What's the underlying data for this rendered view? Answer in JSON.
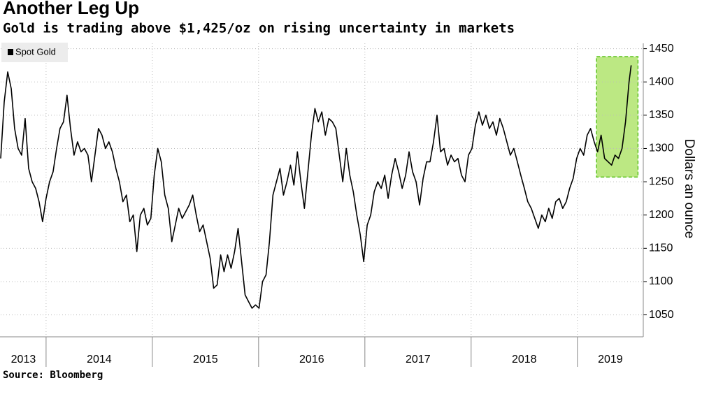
{
  "chart_data": {
    "type": "line",
    "title": "Another Leg Up",
    "subtitle": "Gold is trading above $1,425/oz on rising uncertainty in markets",
    "y_axis_label": "Dollars an ounce",
    "source": "Source: Bloomberg",
    "grid": true,
    "legend_position": "top-left",
    "xlim": [
      2013.573,
      2019.62
    ],
    "xticks": [
      {
        "value": 2013,
        "label": "2013"
      },
      {
        "value": 2014,
        "label": "2014"
      },
      {
        "value": 2015,
        "label": "2015"
      },
      {
        "value": 2016,
        "label": "2016"
      },
      {
        "value": 2017,
        "label": "2017"
      },
      {
        "value": 2018,
        "label": "2018"
      },
      {
        "value": 2019,
        "label": "2019"
      }
    ],
    "ylim": [
      1017,
      1458
    ],
    "yticks": [
      1050,
      1100,
      1150,
      1200,
      1250,
      1300,
      1350,
      1400,
      1450
    ],
    "highlight": {
      "x": [
        2019.18,
        2019.57
      ],
      "y": [
        1257,
        1438
      ],
      "color": "#a6e05a"
    },
    "x": [
      2013.573,
      2013.606,
      2013.639,
      2013.672,
      2013.704,
      2013.737,
      2013.77,
      2013.803,
      2013.836,
      2013.869,
      2013.902,
      2013.934,
      2013.967,
      2014.0,
      2014.033,
      2014.066,
      2014.099,
      2014.131,
      2014.164,
      2014.197,
      2014.23,
      2014.263,
      2014.296,
      2014.329,
      2014.361,
      2014.394,
      2014.427,
      2014.46,
      2014.493,
      2014.526,
      2014.559,
      2014.591,
      2014.624,
      2014.657,
      2014.69,
      2014.723,
      2014.756,
      2014.788,
      2014.821,
      2014.854,
      2014.887,
      2014.92,
      2014.953,
      2014.986,
      2015.018,
      2015.051,
      2015.084,
      2015.117,
      2015.15,
      2015.183,
      2015.216,
      2015.248,
      2015.281,
      2015.314,
      2015.347,
      2015.38,
      2015.413,
      2015.445,
      2015.478,
      2015.511,
      2015.544,
      2015.577,
      2015.61,
      2015.643,
      2015.675,
      2015.708,
      2015.741,
      2015.774,
      2015.807,
      2015.84,
      2015.873,
      2015.905,
      2015.938,
      2015.971,
      2016.004,
      2016.037,
      2016.07,
      2016.102,
      2016.135,
      2016.168,
      2016.201,
      2016.234,
      2016.267,
      2016.3,
      2016.332,
      2016.365,
      2016.398,
      2016.431,
      2016.464,
      2016.497,
      2016.53,
      2016.562,
      2016.595,
      2016.628,
      2016.661,
      2016.694,
      2016.727,
      2016.759,
      2016.792,
      2016.825,
      2016.858,
      2016.891,
      2016.924,
      2016.957,
      2016.989,
      2017.022,
      2017.055,
      2017.088,
      2017.121,
      2017.154,
      2017.187,
      2017.219,
      2017.252,
      2017.285,
      2017.318,
      2017.351,
      2017.384,
      2017.416,
      2017.449,
      2017.482,
      2017.515,
      2017.548,
      2017.581,
      2017.613,
      2017.646,
      2017.679,
      2017.712,
      2017.745,
      2017.778,
      2017.811,
      2017.843,
      2017.876,
      2017.909,
      2017.942,
      2017.975,
      2018.008,
      2018.04,
      2018.073,
      2018.106,
      2018.139,
      2018.172,
      2018.205,
      2018.238,
      2018.27,
      2018.303,
      2018.336,
      2018.369,
      2018.402,
      2018.435,
      2018.467,
      2018.501,
      2018.533,
      2018.566,
      2018.599,
      2018.632,
      2018.665,
      2018.698,
      2018.73,
      2018.763,
      2018.796,
      2018.829,
      2018.862,
      2018.895,
      2018.927,
      2018.96,
      2018.993,
      2019.026,
      2019.059,
      2019.092,
      2019.124,
      2019.158,
      2019.19,
      2019.223,
      2019.256,
      2019.289,
      2019.322,
      2019.354,
      2019.387,
      2019.42,
      2019.453,
      2019.486,
      2019.506
    ],
    "series": [
      {
        "name": "Spot Gold",
        "color": "#000000",
        "values": [
          1285,
          1370,
          1415,
          1390,
          1330,
          1300,
          1290,
          1345,
          1270,
          1250,
          1240,
          1220,
          1190,
          1225,
          1250,
          1265,
          1300,
          1330,
          1340,
          1380,
          1330,
          1290,
          1310,
          1295,
          1300,
          1290,
          1250,
          1290,
          1330,
          1320,
          1300,
          1310,
          1295,
          1270,
          1250,
          1220,
          1230,
          1190,
          1200,
          1145,
          1200,
          1210,
          1185,
          1195,
          1260,
          1300,
          1280,
          1230,
          1210,
          1160,
          1185,
          1210,
          1195,
          1205,
          1215,
          1230,
          1200,
          1175,
          1185,
          1160,
          1135,
          1090,
          1095,
          1140,
          1115,
          1140,
          1120,
          1145,
          1180,
          1130,
          1080,
          1070,
          1060,
          1065,
          1060,
          1100,
          1110,
          1160,
          1230,
          1250,
          1270,
          1230,
          1250,
          1275,
          1245,
          1295,
          1250,
          1210,
          1265,
          1320,
          1360,
          1340,
          1355,
          1320,
          1345,
          1340,
          1330,
          1290,
          1250,
          1300,
          1260,
          1235,
          1200,
          1170,
          1130,
          1185,
          1200,
          1235,
          1250,
          1240,
          1260,
          1225,
          1260,
          1285,
          1265,
          1240,
          1260,
          1295,
          1265,
          1250,
          1215,
          1255,
          1280,
          1280,
          1310,
          1350,
          1295,
          1300,
          1275,
          1290,
          1280,
          1285,
          1260,
          1250,
          1290,
          1300,
          1335,
          1355,
          1335,
          1350,
          1330,
          1340,
          1320,
          1345,
          1330,
          1310,
          1290,
          1300,
          1280,
          1260,
          1240,
          1220,
          1210,
          1195,
          1180,
          1200,
          1190,
          1210,
          1195,
          1220,
          1225,
          1210,
          1220,
          1240,
          1255,
          1285,
          1300,
          1290,
          1320,
          1330,
          1310,
          1295,
          1320,
          1285,
          1280,
          1275,
          1290,
          1285,
          1300,
          1340,
          1400,
          1425
        ]
      }
    ]
  }
}
